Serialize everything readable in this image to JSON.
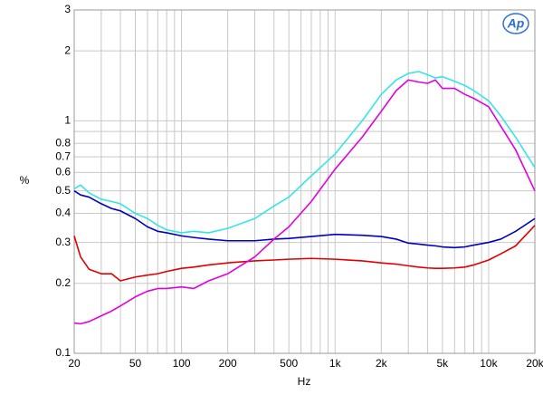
{
  "chart_data": {
    "type": "line",
    "logo": "Ap",
    "xlabel": "Hz",
    "ylabel": "%",
    "xscale": "log",
    "yscale": "log",
    "grid": true,
    "xlim": [
      20,
      20000
    ],
    "ylim": [
      0.1,
      3
    ],
    "xticks": [
      20,
      50,
      100,
      200,
      500,
      {
        "value": 1000,
        "label": "1k"
      },
      {
        "value": 2000,
        "label": "2k"
      },
      {
        "value": 5000,
        "label": "5k"
      },
      {
        "value": 10000,
        "label": "10k"
      },
      {
        "value": 20000,
        "label": "20k"
      }
    ],
    "xminor": [
      30,
      40,
      60,
      70,
      80,
      90,
      300,
      400,
      600,
      700,
      800,
      900,
      3000,
      4000,
      6000,
      7000,
      8000,
      9000
    ],
    "yticks": [
      0.1,
      0.2,
      0.3,
      0.4,
      0.5,
      0.6,
      0.7,
      0.8,
      1,
      2,
      3
    ],
    "yminor": [
      0.9
    ],
    "x": [
      20,
      22,
      25,
      30,
      35,
      40,
      50,
      60,
      70,
      80,
      100,
      120,
      150,
      200,
      300,
      400,
      500,
      700,
      1000,
      1500,
      2000,
      2500,
      3000,
      3500,
      4000,
      4500,
      5000,
      6000,
      7000,
      8000,
      10000,
      12000,
      15000,
      20000
    ],
    "series": [
      {
        "color": "#33e6e6",
        "values": [
          0.51,
          0.53,
          0.49,
          0.46,
          0.45,
          0.44,
          0.4,
          0.38,
          0.355,
          0.34,
          0.33,
          0.335,
          0.33,
          0.345,
          0.38,
          0.43,
          0.47,
          0.58,
          0.72,
          1.0,
          1.3,
          1.5,
          1.6,
          1.63,
          1.58,
          1.53,
          1.55,
          1.48,
          1.42,
          1.35,
          1.22,
          1.05,
          0.85,
          0.63
        ]
      },
      {
        "color": "#0000c0",
        "values": [
          0.5,
          0.48,
          0.47,
          0.44,
          0.42,
          0.41,
          0.38,
          0.35,
          0.335,
          0.33,
          0.32,
          0.315,
          0.31,
          0.305,
          0.305,
          0.31,
          0.312,
          0.318,
          0.325,
          0.322,
          0.318,
          0.31,
          0.298,
          0.295,
          0.292,
          0.29,
          0.287,
          0.285,
          0.287,
          0.292,
          0.3,
          0.31,
          0.335,
          0.38
        ]
      },
      {
        "color": "#e00000",
        "values": [
          0.32,
          0.26,
          0.23,
          0.22,
          0.22,
          0.205,
          0.213,
          0.217,
          0.22,
          0.225,
          0.232,
          0.235,
          0.24,
          0.245,
          0.25,
          0.252,
          0.254,
          0.256,
          0.254,
          0.25,
          0.245,
          0.242,
          0.238,
          0.235,
          0.233,
          0.232,
          0.232,
          0.233,
          0.235,
          0.24,
          0.252,
          0.268,
          0.29,
          0.355
        ]
      },
      {
        "color": "#e000e0",
        "values": [
          0.135,
          0.134,
          0.137,
          0.145,
          0.152,
          0.16,
          0.175,
          0.185,
          0.19,
          0.19,
          0.193,
          0.19,
          0.205,
          0.22,
          0.26,
          0.31,
          0.35,
          0.45,
          0.62,
          0.85,
          1.1,
          1.35,
          1.5,
          1.47,
          1.45,
          1.5,
          1.38,
          1.38,
          1.3,
          1.25,
          1.15,
          0.95,
          0.75,
          0.5
        ]
      }
    ]
  }
}
